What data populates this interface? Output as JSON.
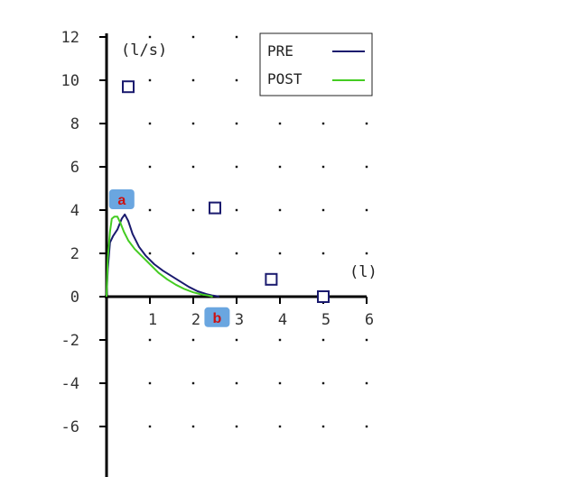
{
  "chart_data": {
    "type": "line",
    "title": "",
    "xlabel": "",
    "ylabel": "",
    "y_unit": "(l/s)",
    "x_unit": "(l)",
    "xlim": [
      0,
      6
    ],
    "ylim": [
      -7,
      12
    ],
    "x_ticks": [
      "1",
      "2",
      "3",
      "4",
      "5",
      "6"
    ],
    "y_ticks": [
      "12",
      "10",
      "8",
      "6",
      "4",
      "2",
      "0",
      "-2",
      "-4",
      "-6"
    ],
    "grid": "dotted",
    "legend_position": "top-right",
    "colors": {
      "PRE": "#1a1a6e",
      "POST": "#44cc22",
      "badge_bg": "#6aa6e0",
      "badge_text": "#cc1111"
    },
    "series": [
      {
        "name": "PRE",
        "x": [
          0.0,
          0.03,
          0.08,
          0.15,
          0.25,
          0.35,
          0.42,
          0.5,
          0.6,
          0.75,
          0.9,
          1.1,
          1.3,
          1.5,
          1.7,
          1.9,
          2.1,
          2.3,
          2.45,
          2.55,
          2.6
        ],
        "y": [
          0.0,
          1.3,
          2.5,
          2.8,
          3.1,
          3.6,
          3.8,
          3.5,
          2.9,
          2.3,
          1.9,
          1.5,
          1.2,
          0.95,
          0.7,
          0.45,
          0.25,
          0.12,
          0.05,
          0.02,
          0.0
        ]
      },
      {
        "name": "POST",
        "x": [
          0.0,
          0.03,
          0.08,
          0.12,
          0.18,
          0.25,
          0.32,
          0.4,
          0.5,
          0.65,
          0.8,
          1.0,
          1.2,
          1.4,
          1.6,
          1.8,
          2.0,
          2.2,
          2.35,
          2.45
        ],
        "y": [
          0.0,
          1.8,
          3.0,
          3.6,
          3.7,
          3.7,
          3.4,
          3.0,
          2.6,
          2.2,
          1.9,
          1.5,
          1.1,
          0.8,
          0.55,
          0.35,
          0.2,
          0.1,
          0.05,
          0.0
        ]
      }
    ],
    "markers": {
      "shape": "square",
      "points": [
        {
          "x": 0.5,
          "y": 9.7
        },
        {
          "x": 2.5,
          "y": 4.1
        },
        {
          "x": 3.8,
          "y": 0.8
        },
        {
          "x": 5.0,
          "y": 0.0
        }
      ]
    },
    "badges": [
      {
        "label": "a",
        "x": 0.35,
        "y": 4.5
      },
      {
        "label": "b",
        "x": 2.55,
        "y": -0.95
      }
    ]
  }
}
